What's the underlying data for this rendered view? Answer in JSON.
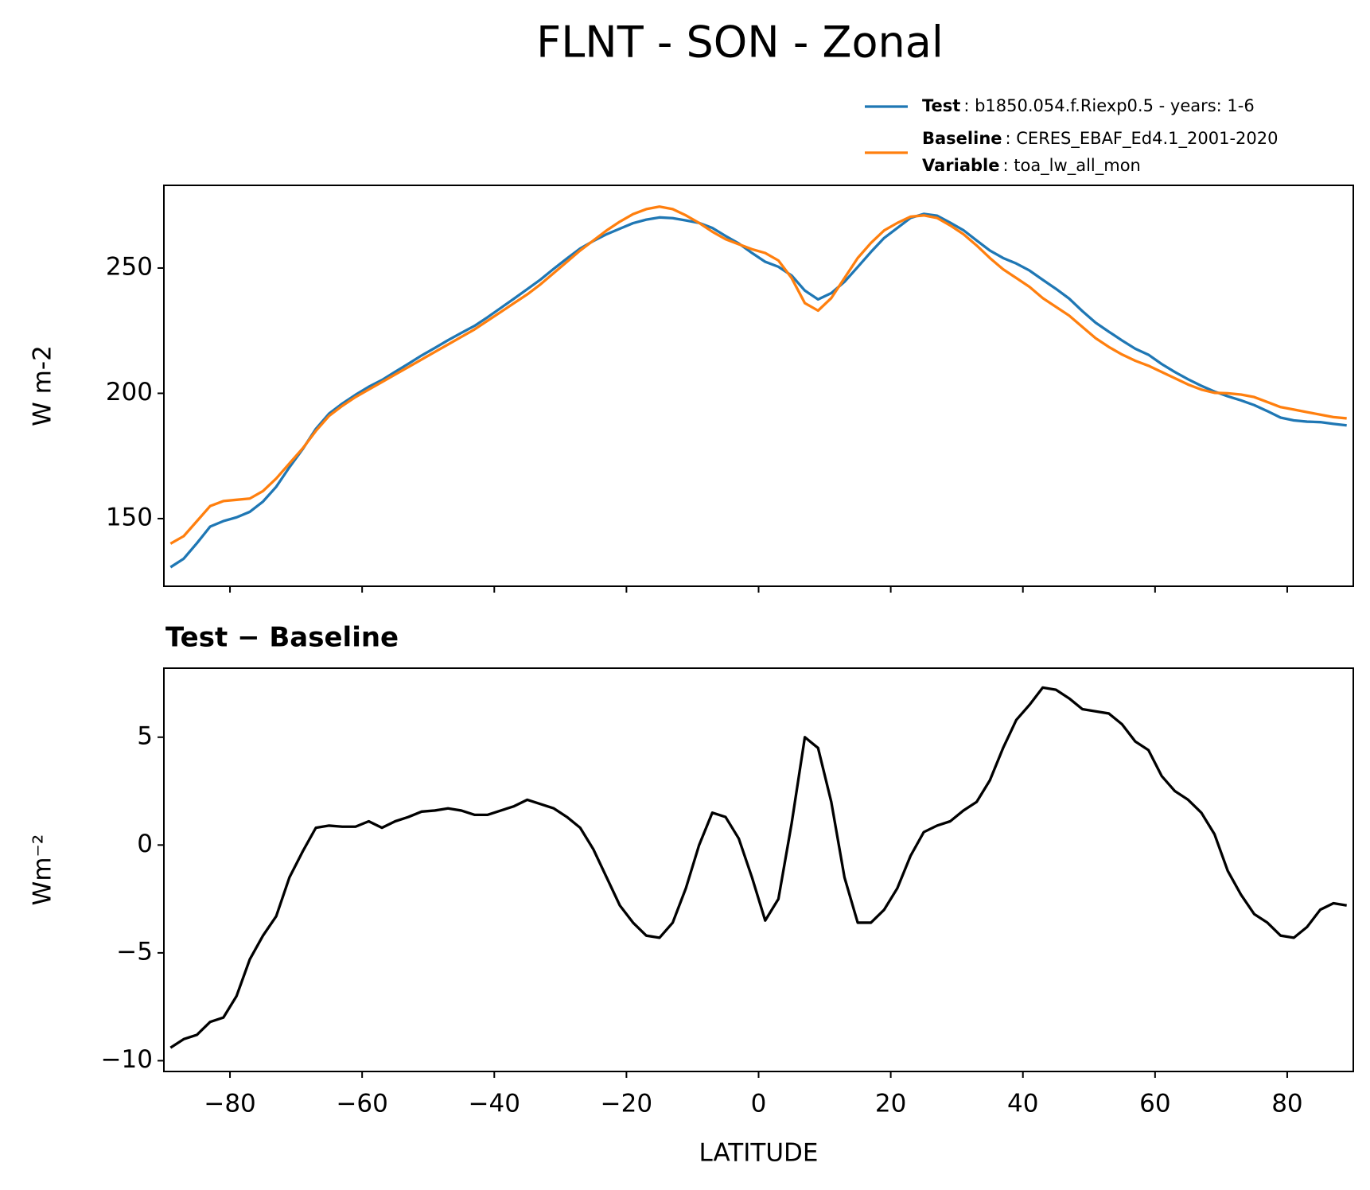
{
  "title": "FLNT - SON - Zonal",
  "chart_data": [
    {
      "type": "line",
      "ylabel": "W m-2",
      "x": [
        -89,
        -87,
        -85,
        -83,
        -81,
        -79,
        -77,
        -75,
        -73,
        -71,
        -69,
        -67,
        -65,
        -63,
        -61,
        -59,
        -57,
        -55,
        -53,
        -51,
        -49,
        -47,
        -45,
        -43,
        -41,
        -39,
        -37,
        -35,
        -33,
        -31,
        -29,
        -27,
        -25,
        -23,
        -21,
        -19,
        -17,
        -15,
        -13,
        -11,
        -9,
        -7,
        -5,
        -3,
        -1,
        1,
        3,
        5,
        7,
        9,
        11,
        13,
        15,
        17,
        19,
        21,
        23,
        25,
        27,
        29,
        31,
        33,
        35,
        37,
        39,
        41,
        43,
        45,
        47,
        49,
        51,
        53,
        55,
        57,
        59,
        61,
        63,
        65,
        67,
        69,
        71,
        73,
        75,
        77,
        79,
        81,
        83,
        85,
        87,
        89
      ],
      "series": [
        {
          "name": "Test",
          "description": ": b1850.054.f.Riexp0.5 - years: 1-6",
          "color": "#1f77b4",
          "values": [
            130.6,
            134,
            140.2,
            146.8,
            149,
            150.5,
            152.7,
            156.8,
            162.7,
            170.5,
            177.7,
            185.8,
            191.9,
            195.9,
            199.4,
            202.6,
            205.3,
            208.6,
            211.8,
            215.1,
            218.1,
            221.2,
            224.1,
            226.9,
            230.4,
            234.1,
            237.8,
            241.6,
            245.4,
            249.7,
            253.8,
            257.8,
            260.8,
            263.5,
            265.7,
            267.9,
            269.3,
            270.2,
            269.9,
            269,
            268,
            266,
            262.8,
            259.8,
            256,
            252.5,
            250.5,
            247,
            241,
            237.5,
            240,
            244.5,
            250.4,
            256.4,
            262,
            266,
            270,
            271.6,
            270.9,
            268.1,
            265.1,
            261,
            257,
            254,
            251.8,
            249,
            245.3,
            241.7,
            237.8,
            232.8,
            228.2,
            224.6,
            221.1,
            217.8,
            215.4,
            211.7,
            208.5,
            205.6,
            203,
            200.7,
            198.8,
            197.2,
            195.3,
            192.9,
            190.3,
            189.2,
            188.7,
            188.5,
            187.8,
            187.2
          ]
        },
        {
          "name": "Baseline",
          "description": ": CERES_EBAF_Ed4.1_2001-2020",
          "color": "#ff7f0e",
          "values": [
            140,
            143,
            149,
            155,
            157,
            157.5,
            158,
            161,
            166,
            172,
            178,
            185,
            191,
            195,
            198.5,
            201.5,
            204.5,
            207.5,
            210.5,
            213.5,
            216.5,
            219.5,
            222.5,
            225.5,
            229,
            232.5,
            236,
            239.5,
            243.5,
            248,
            252.5,
            257,
            261,
            265,
            268.5,
            271.5,
            273.5,
            274.5,
            273.5,
            271,
            268,
            264.5,
            261.5,
            259.5,
            257.5,
            256,
            253,
            246,
            236,
            233,
            238,
            246,
            254,
            260,
            265,
            268,
            270.5,
            271,
            270,
            267,
            263.5,
            259,
            254,
            249.5,
            246,
            242.5,
            238,
            234.5,
            231,
            226.5,
            222,
            218.5,
            215.5,
            213,
            211,
            208.5,
            206,
            203.5,
            201.5,
            200.2,
            200,
            199.5,
            198.5,
            196.5,
            194.5,
            193.5,
            192.5,
            191.5,
            190.5,
            190
          ]
        }
      ],
      "variable": {
        "name": "Variable",
        "description": ": toa_lw_all_mon"
      },
      "xlim": [
        -90,
        90
      ],
      "xticks": [
        -80,
        -60,
        -40,
        -20,
        0,
        20,
        40,
        60,
        80
      ],
      "show_xtick_labels": false,
      "ylim": [
        123,
        283
      ],
      "yticks": [
        150,
        200,
        250
      ]
    },
    {
      "type": "line",
      "title": "Test − Baseline",
      "ylabel": "Wm⁻²",
      "xlabel": "LATITUDE",
      "x": [
        -89,
        -87,
        -85,
        -83,
        -81,
        -79,
        -77,
        -75,
        -73,
        -71,
        -69,
        -67,
        -65,
        -63,
        -61,
        -59,
        -57,
        -55,
        -53,
        -51,
        -49,
        -47,
        -45,
        -43,
        -41,
        -39,
        -37,
        -35,
        -33,
        -31,
        -29,
        -27,
        -25,
        -23,
        -21,
        -19,
        -17,
        -15,
        -13,
        -11,
        -9,
        -7,
        -5,
        -3,
        -1,
        1,
        3,
        5,
        7,
        9,
        11,
        13,
        15,
        17,
        19,
        21,
        23,
        25,
        27,
        29,
        31,
        33,
        35,
        37,
        39,
        41,
        43,
        45,
        47,
        49,
        51,
        53,
        55,
        57,
        59,
        61,
        63,
        65,
        67,
        69,
        71,
        73,
        75,
        77,
        79,
        81,
        83,
        85,
        87,
        89
      ],
      "series": [
        {
          "color": "#000000",
          "values": [
            -9.4,
            -9.0,
            -8.8,
            -8.2,
            -8.0,
            -7.0,
            -5.3,
            -4.2,
            -3.3,
            -1.5,
            -0.3,
            0.8,
            0.9,
            0.85,
            0.85,
            1.1,
            0.8,
            1.1,
            1.3,
            1.55,
            1.6,
            1.7,
            1.6,
            1.4,
            1.4,
            1.6,
            1.8,
            2.1,
            1.9,
            1.7,
            1.3,
            0.8,
            -0.2,
            -1.5,
            -2.8,
            -3.6,
            -4.2,
            -4.3,
            -3.6,
            -2.0,
            0.0,
            1.5,
            1.3,
            0.3,
            -1.5,
            -3.5,
            -2.5,
            1.0,
            5.0,
            4.5,
            2.0,
            -1.5,
            -3.6,
            -3.6,
            -3.0,
            -2.0,
            -0.5,
            0.6,
            0.9,
            1.1,
            1.6,
            2.0,
            3.0,
            4.5,
            5.8,
            6.5,
            7.3,
            7.2,
            6.8,
            6.3,
            6.2,
            6.1,
            5.6,
            4.8,
            4.4,
            3.2,
            2.5,
            2.1,
            1.5,
            0.5,
            -1.2,
            -2.3,
            -3.2,
            -3.6,
            -4.2,
            -4.3,
            -3.8,
            -3.0,
            -2.7,
            -2.8
          ]
        }
      ],
      "xlim": [
        -90,
        90
      ],
      "xticks": [
        {
          "value": -80,
          "label": "−80"
        },
        {
          "value": -60,
          "label": "−60"
        },
        {
          "value": -40,
          "label": "−40"
        },
        {
          "value": -20,
          "label": "−20"
        },
        0,
        20,
        40,
        60,
        80
      ],
      "show_xtick_labels": true,
      "ylim": [
        -10.5,
        8.2
      ],
      "yticks": [
        {
          "value": -10,
          "label": "−10"
        },
        {
          "value": -5,
          "label": "−5"
        },
        0,
        5
      ]
    }
  ]
}
